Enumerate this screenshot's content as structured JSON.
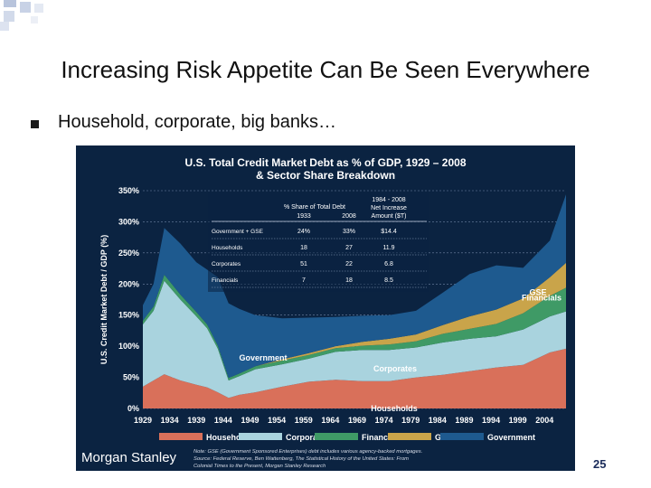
{
  "slide": {
    "title": "Increasing Risk Appetite Can Be Seen Everywhere",
    "bullet": "Household, corporate, big banks…",
    "page_number": "25"
  },
  "colors": {
    "panel_background": "#0b2341",
    "households": "#d9705a",
    "corporates": "#a9d3de",
    "financials": "#3f9a66",
    "gse": "#c9a44a",
    "government": "#1e5a8f"
  },
  "chart_data": {
    "type": "area",
    "stacked": true,
    "title": "U.S. Total Credit Market Debt as % of GDP, 1929 – 2008",
    "subtitle": "& Sector Share Breakdown",
    "ylabel": "U.S. Credit Market Debt / GDP (%)",
    "xlabel": "",
    "xlim": [
      1929,
      2008
    ],
    "ylim": [
      0,
      350
    ],
    "y_ticks": [
      "0%",
      "50%",
      "100%",
      "150%",
      "200%",
      "250%",
      "300%",
      "350%"
    ],
    "x_ticks": [
      "1929",
      "1934",
      "1939",
      "1944",
      "1949",
      "1954",
      "1959",
      "1964",
      "1969",
      "1974",
      "1979",
      "1984",
      "1989",
      "1994",
      "1999",
      "2004"
    ],
    "x": [
      1929,
      1931,
      1933,
      1936,
      1939,
      1941,
      1943,
      1945,
      1947,
      1950,
      1955,
      1960,
      1965,
      1970,
      1975,
      1980,
      1985,
      1990,
      1995,
      2000,
      2005,
      2008
    ],
    "series": [
      {
        "name": "Households",
        "values": [
          35,
          45,
          55,
          45,
          38,
          34,
          26,
          17,
          22,
          26,
          35,
          43,
          46,
          44,
          44,
          50,
          54,
          60,
          66,
          70,
          90,
          96
        ]
      },
      {
        "name": "Corporates",
        "values": [
          100,
          112,
          150,
          130,
          110,
          95,
          70,
          28,
          30,
          37,
          36,
          37,
          45,
          50,
          50,
          48,
          52,
          52,
          50,
          57,
          58,
          60
        ]
      },
      {
        "name": "Financials",
        "values": [
          6,
          7,
          10,
          8,
          7,
          6,
          5,
          4,
          4,
          5,
          6,
          6,
          6,
          7,
          9,
          10,
          14,
          16,
          20,
          26,
          33,
          38
        ]
      },
      {
        "name": "GSE",
        "values": [
          0,
          0,
          0,
          0,
          0,
          0,
          0,
          0,
          0,
          0,
          2,
          3,
          3,
          6,
          9,
          11,
          14,
          20,
          23,
          24,
          30,
          40
        ]
      },
      {
        "name": "Government",
        "values": [
          25,
          36,
          75,
          82,
          80,
          88,
          110,
          120,
          104,
          82,
          66,
          57,
          47,
          42,
          38,
          38,
          52,
          68,
          71,
          49,
          59,
          110
        ]
      }
    ],
    "series_labels": [
      "GSE",
      "Financials",
      "Government",
      "Corporates",
      "Households"
    ],
    "legend": {
      "position": "bottom",
      "entries": [
        "Households",
        "Corporates",
        "Financials",
        "GSE",
        "Government"
      ]
    },
    "inset_table": {
      "header_share": "% Share of Total Debt",
      "header_1933": "1933",
      "header_2008": "2008",
      "header_increase": "1984 - 2008 Net Increase Amount ($T)",
      "rows": [
        {
          "label": "Government + GSE",
          "share_1933": "24%",
          "share_2008": "33%",
          "increase": "$14.4"
        },
        {
          "label": "Households",
          "share_1933": "18",
          "share_2008": "27",
          "increase": "11.9"
        },
        {
          "label": "Corporates",
          "share_1933": "51",
          "share_2008": "22",
          "increase": "6.8"
        },
        {
          "label": "Financials",
          "share_1933": "7",
          "share_2008": "18",
          "increase": "8.5"
        }
      ]
    },
    "source_logo": "Morgan Stanley",
    "note": "Note: GSE (Government Sponsored Enterprises) debt includes various agency-backed mortgages. Source: Federal Reserve, Ben Wattenberg, The Statistical History of the United States: From Colonial Times to the Present, Morgan Stanley Research"
  }
}
